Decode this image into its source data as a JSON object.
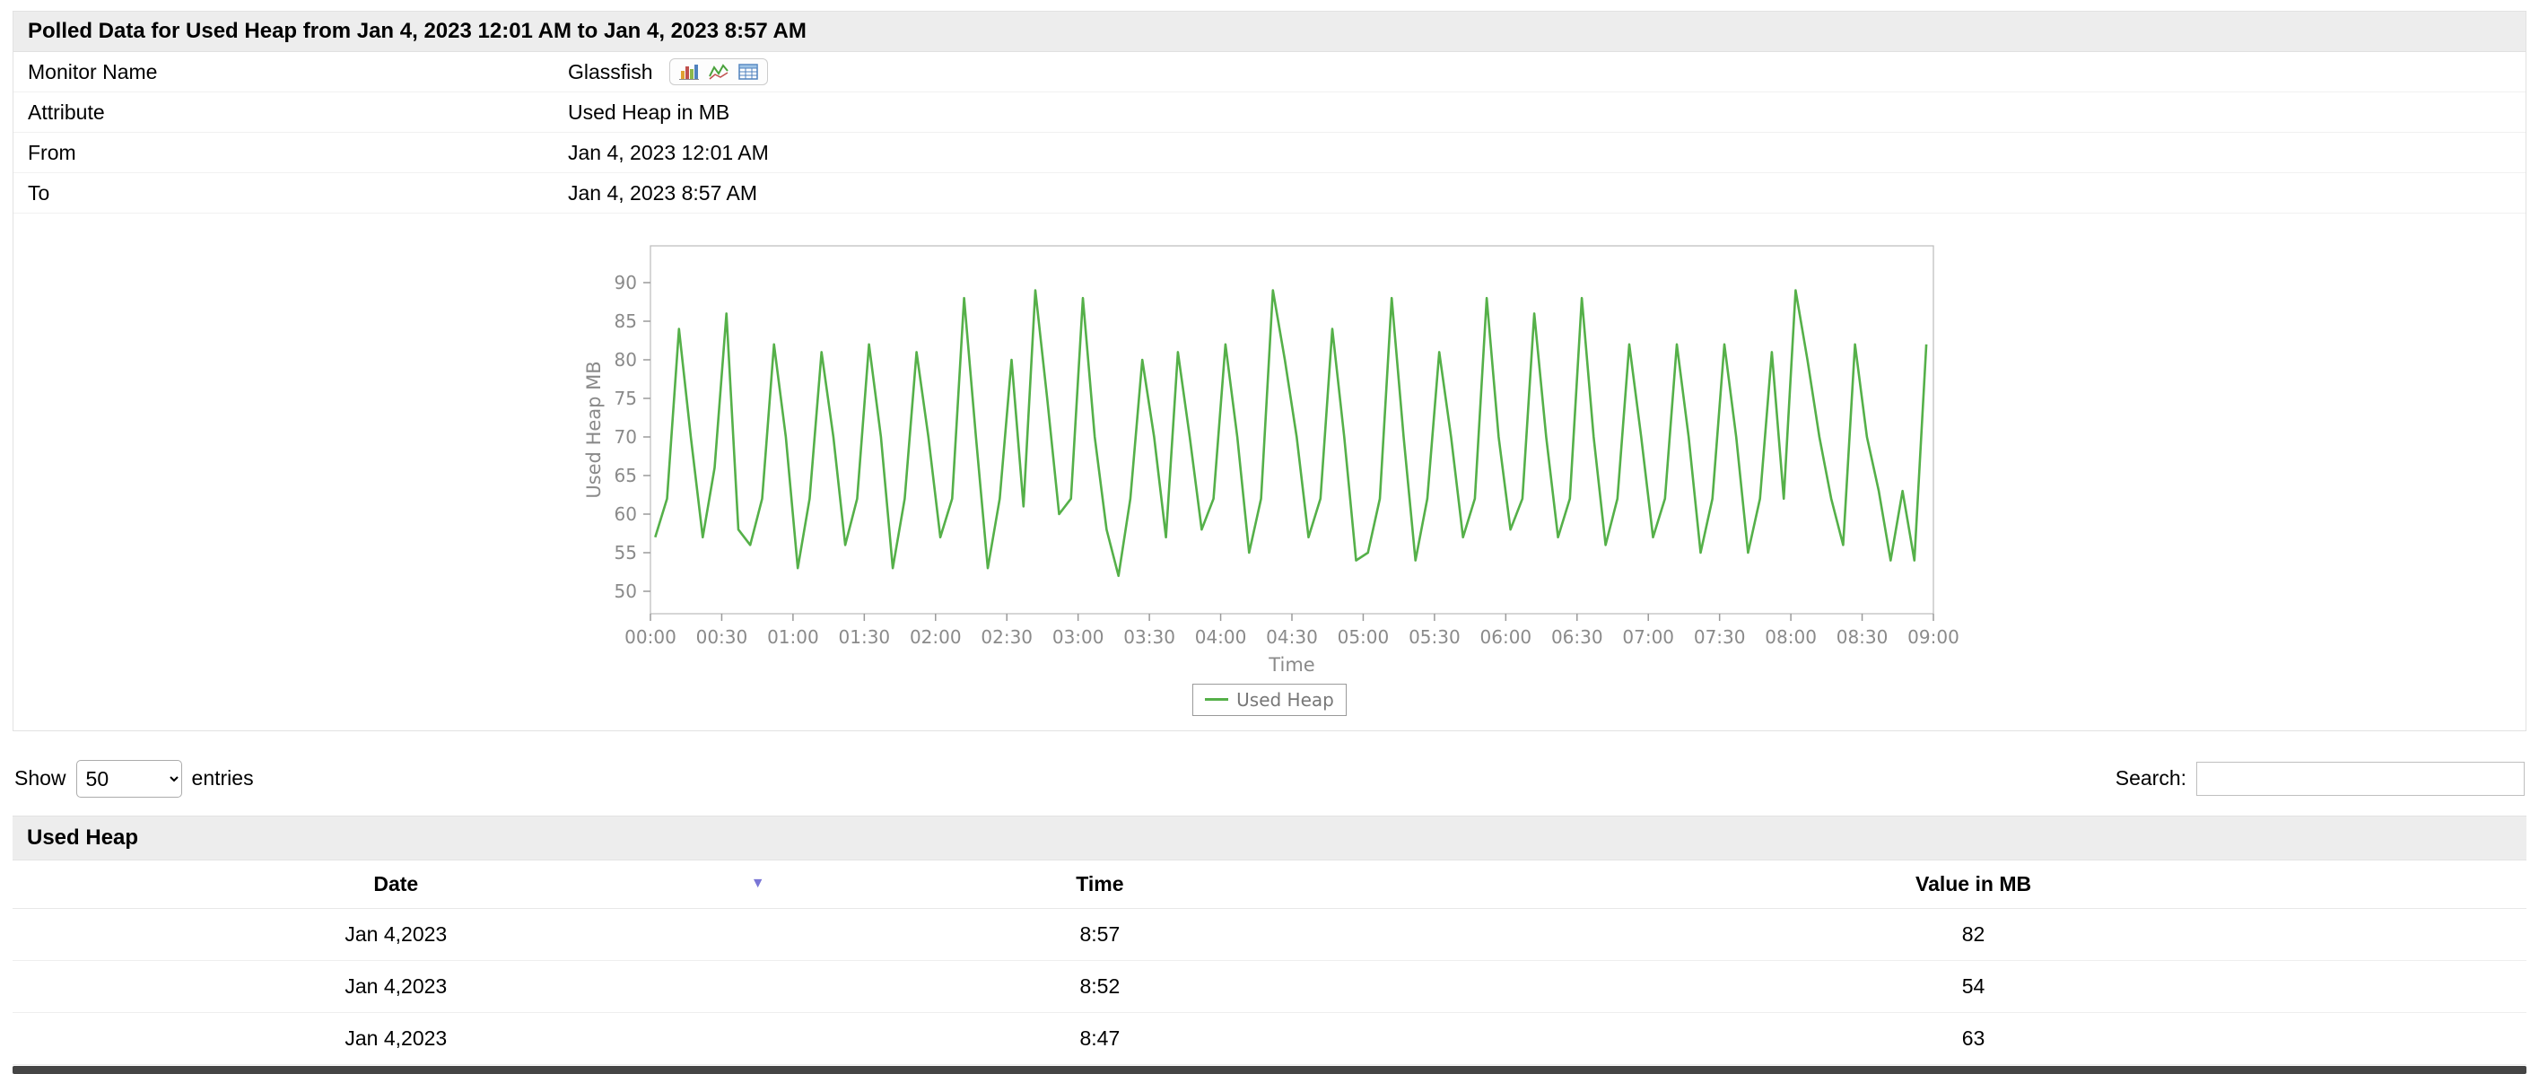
{
  "page": {
    "title_bar": "Polled Data for Used Heap from Jan 4, 2023 12:01 AM to Jan 4, 2023 8:57 AM"
  },
  "info": {
    "rows": [
      {
        "label": "Monitor Name",
        "value": "Glassfish"
      },
      {
        "label": "Attribute",
        "value": "Used Heap in MB"
      },
      {
        "label": "From",
        "value": "Jan 4, 2023 12:01 AM"
      },
      {
        "label": "To",
        "value": "Jan 4, 2023 8:57 AM"
      }
    ],
    "monitor_icons": [
      "bar-chart-icon",
      "line-chart-icon",
      "table-icon"
    ]
  },
  "chart_data": {
    "type": "line",
    "title": "",
    "xlabel": "Time",
    "ylabel": "Used Heap MB",
    "ylim": [
      50,
      90
    ],
    "y_ticks": [
      50,
      55,
      60,
      65,
      70,
      75,
      80,
      85,
      90
    ],
    "x_tick_labels": [
      "00:00",
      "00:30",
      "01:00",
      "01:30",
      "02:00",
      "02:30",
      "03:00",
      "03:30",
      "04:00",
      "04:30",
      "05:00",
      "05:30",
      "06:00",
      "06:30",
      "07:00",
      "07:30",
      "08:00",
      "08:30",
      "09:00"
    ],
    "x_range_minutes": [
      0,
      540
    ],
    "grid": false,
    "legend": {
      "position": "bottom",
      "entries": [
        "Used Heap"
      ]
    },
    "series": [
      {
        "name": "Used Heap",
        "color": "#55b049",
        "start_minute": 2,
        "interval_minutes": 5,
        "values": [
          57,
          62,
          84,
          70,
          57,
          66,
          86,
          58,
          56,
          62,
          82,
          70,
          53,
          62,
          81,
          70,
          56,
          62,
          82,
          70,
          53,
          62,
          81,
          70,
          57,
          62,
          88,
          70,
          53,
          62,
          80,
          61,
          89,
          75,
          60,
          62,
          88,
          70,
          58,
          52,
          62,
          80,
          70,
          57,
          81,
          70,
          58,
          62,
          82,
          70,
          55,
          62,
          89,
          80,
          70,
          57,
          62,
          84,
          70,
          54,
          55,
          62,
          88,
          70,
          54,
          62,
          81,
          70,
          57,
          62,
          88,
          70,
          58,
          62,
          86,
          70,
          57,
          62,
          88,
          70,
          56,
          62,
          82,
          70,
          57,
          62,
          82,
          70,
          55,
          62,
          82,
          70,
          55,
          62,
          81,
          62,
          89,
          80,
          70,
          62,
          56,
          82,
          70,
          63,
          54,
          63,
          54,
          82
        ]
      }
    ]
  },
  "controls": {
    "show_label": "Show",
    "entries_value": "50",
    "entries_label": "entries",
    "search_label": "Search:",
    "search_value": ""
  },
  "table": {
    "section_title": "Used Heap",
    "columns": [
      "Date",
      "Time",
      "Value in MB"
    ],
    "sorted_column": "Date",
    "sort_direction": "desc",
    "sort_indicator": "▼",
    "rows": [
      [
        "Jan 4,2023",
        "8:57",
        "82"
      ],
      [
        "Jan 4,2023",
        "8:52",
        "54"
      ],
      [
        "Jan 4,2023",
        "8:47",
        "63"
      ]
    ]
  },
  "colors": {
    "series_green": "#55b049",
    "header_bar_bg": "#ededed",
    "sort_arrow": "#7a76d6",
    "axis_text": "#8a8a8a"
  }
}
